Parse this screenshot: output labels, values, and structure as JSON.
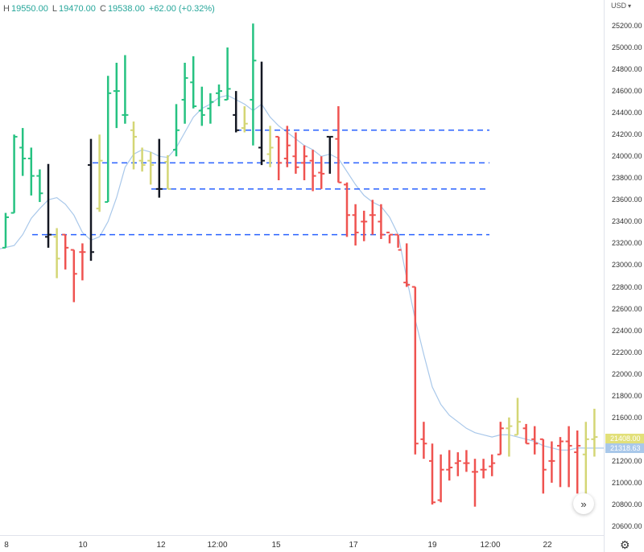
{
  "header": {
    "high_label": "H",
    "high": "19550.00",
    "low_label": "L",
    "low": "19470.00",
    "close_label": "C",
    "close": "19538.00",
    "change": "+62.00 (+0.32%)"
  },
  "price_scale": {
    "currency": "USD",
    "labels": [
      "25200.00",
      "25000.00",
      "24800.00",
      "24600.00",
      "24400.00",
      "24200.00",
      "24000.00",
      "23800.00",
      "23600.00",
      "23400.00",
      "23200.00",
      "23000.00",
      "22800.00",
      "22600.00",
      "22400.00",
      "22200.00",
      "22000.00",
      "21800.00",
      "21600.00",
      "21400.00",
      "21200.00",
      "21000.00",
      "20800.00",
      "20600.00"
    ],
    "last_price_tag": "21408.00",
    "ma_price_tag": "21318.63"
  },
  "time_scale": {
    "labels": [
      "8",
      "10",
      "12",
      "12:00",
      "15",
      "17",
      "19",
      "12:00",
      "22"
    ]
  },
  "colors": {
    "up": "#26c281",
    "down": "#ef5350",
    "neutral": "#d4d675",
    "black": "#131722",
    "ma": "#a9c8ea",
    "level": "#2962ff",
    "last_tag": "#e2e07a",
    "ma_tag": "#a9c8ea"
  },
  "icons": {
    "scroll": "double-chevron-right-icon",
    "settings": "gear-icon"
  },
  "chart_data": {
    "type": "ohlc",
    "ylim": [
      20600,
      25300
    ],
    "grid": false,
    "bars": [
      {
        "color": "up",
        "o": 23160,
        "h": 23480,
        "l": 23160,
        "c": 23440
      },
      {
        "color": "up",
        "o": 23480,
        "h": 24200,
        "l": 23480,
        "c": 24180
      },
      {
        "color": "up",
        "o": 24080,
        "h": 24260,
        "l": 23820,
        "c": 23980
      },
      {
        "color": "up",
        "o": 23980,
        "h": 24080,
        "l": 23640,
        "c": 23820
      },
      {
        "color": "up",
        "o": 23820,
        "h": 23880,
        "l": 23580,
        "c": 23660
      },
      {
        "color": "black",
        "o": 23260,
        "h": 23930,
        "l": 23160,
        "c": 23280
      },
      {
        "color": "neutral",
        "o": 23260,
        "h": 23340,
        "l": 22880,
        "c": 23060
      },
      {
        "color": "down",
        "o": 23280,
        "h": 23280,
        "l": 22960,
        "c": 23160
      },
      {
        "color": "down",
        "o": 23140,
        "h": 23140,
        "l": 22660,
        "c": 22920
      },
      {
        "color": "down",
        "o": 23120,
        "h": 23200,
        "l": 22860,
        "c": 23120
      },
      {
        "color": "black",
        "o": 23920,
        "h": 24160,
        "l": 23040,
        "c": 23120
      },
      {
        "color": "neutral",
        "o": 23520,
        "h": 24200,
        "l": 23490,
        "c": 23960
      },
      {
        "color": "up",
        "o": 23580,
        "h": 24740,
        "l": 23580,
        "c": 24580
      },
      {
        "color": "up",
        "o": 24600,
        "h": 24860,
        "l": 24260,
        "c": 24600
      },
      {
        "color": "up",
        "o": 24380,
        "h": 24930,
        "l": 24300,
        "c": 24380
      },
      {
        "color": "neutral",
        "o": 24240,
        "h": 24320,
        "l": 23880,
        "c": 24180
      },
      {
        "color": "neutral",
        "o": 23960,
        "h": 24080,
        "l": 23860,
        "c": 23920
      },
      {
        "color": "neutral",
        "o": 23960,
        "h": 24040,
        "l": 23740,
        "c": 23920
      },
      {
        "color": "black",
        "o": 23700,
        "h": 24160,
        "l": 23620,
        "c": 23700
      },
      {
        "color": "neutral",
        "o": 23950,
        "h": 24010,
        "l": 23700,
        "c": 23700
      },
      {
        "color": "up",
        "o": 24060,
        "h": 24480,
        "l": 24000,
        "c": 24240
      },
      {
        "color": "up",
        "o": 24520,
        "h": 24860,
        "l": 24300,
        "c": 24720
      },
      {
        "color": "up",
        "o": 24680,
        "h": 24920,
        "l": 24440,
        "c": 24460
      },
      {
        "color": "up",
        "o": 24420,
        "h": 24640,
        "l": 24280,
        "c": 24380
      },
      {
        "color": "up",
        "o": 24440,
        "h": 24580,
        "l": 24300,
        "c": 24500
      },
      {
        "color": "up",
        "o": 24580,
        "h": 24660,
        "l": 24460,
        "c": 24600
      },
      {
        "color": "up",
        "o": 24520,
        "h": 25000,
        "l": 24520,
        "c": 24620
      },
      {
        "color": "black",
        "o": 24380,
        "h": 24600,
        "l": 24220,
        "c": 24240
      },
      {
        "color": "neutral",
        "o": 24260,
        "h": 24460,
        "l": 24220,
        "c": 24300
      },
      {
        "color": "up",
        "o": 24520,
        "h": 25220,
        "l": 24100,
        "c": 24880
      },
      {
        "color": "black",
        "o": 24080,
        "h": 24870,
        "l": 23920,
        "c": 23960
      },
      {
        "color": "neutral",
        "o": 24020,
        "h": 24280,
        "l": 23900,
        "c": 24080
      },
      {
        "color": "down",
        "o": 24180,
        "h": 24180,
        "l": 23780,
        "c": 23940
      },
      {
        "color": "down",
        "o": 23980,
        "h": 24280,
        "l": 23900,
        "c": 24100
      },
      {
        "color": "down",
        "o": 24000,
        "h": 24220,
        "l": 23840,
        "c": 23900
      },
      {
        "color": "down",
        "o": 23940,
        "h": 24100,
        "l": 23780,
        "c": 24000
      },
      {
        "color": "down",
        "o": 23960,
        "h": 24060,
        "l": 23680,
        "c": 23820
      },
      {
        "color": "down",
        "o": 23850,
        "h": 24000,
        "l": 23700,
        "c": 23840
      },
      {
        "color": "black",
        "o": 24180,
        "h": 24180,
        "l": 23840,
        "c": 24180
      },
      {
        "color": "down",
        "o": 24160,
        "h": 24460,
        "l": 23760,
        "c": 23760
      },
      {
        "color": "down",
        "o": 23740,
        "h": 23760,
        "l": 23260,
        "c": 23460
      },
      {
        "color": "down",
        "o": 23460,
        "h": 23560,
        "l": 23180,
        "c": 23300
      },
      {
        "color": "down",
        "o": 23400,
        "h": 23500,
        "l": 23220,
        "c": 23400
      },
      {
        "color": "down",
        "o": 23460,
        "h": 23600,
        "l": 23280,
        "c": 23460
      },
      {
        "color": "down",
        "o": 23400,
        "h": 23560,
        "l": 23240,
        "c": 23280
      },
      {
        "color": "down",
        "o": 23300,
        "h": 23280,
        "l": 23200,
        "c": 23280
      },
      {
        "color": "down",
        "o": 23280,
        "h": 23280,
        "l": 23160,
        "c": 23140
      },
      {
        "color": "down",
        "o": 22840,
        "h": 23200,
        "l": 22800,
        "c": 22820
      },
      {
        "color": "down",
        "o": 22800,
        "h": 22800,
        "l": 21260,
        "c": 21360
      },
      {
        "color": "down",
        "o": 21400,
        "h": 21560,
        "l": 21220,
        "c": 21360
      },
      {
        "color": "down",
        "o": 21200,
        "h": 21360,
        "l": 20800,
        "c": 20820
      },
      {
        "color": "down",
        "o": 20840,
        "h": 21260,
        "l": 20820,
        "c": 21120
      },
      {
        "color": "down",
        "o": 21120,
        "h": 21300,
        "l": 21020,
        "c": 21140
      },
      {
        "color": "down",
        "o": 21180,
        "h": 21280,
        "l": 21060,
        "c": 21200
      },
      {
        "color": "down",
        "o": 21180,
        "h": 21300,
        "l": 21100,
        "c": 21180
      },
      {
        "color": "down",
        "o": 21100,
        "h": 21220,
        "l": 20780,
        "c": 21100
      },
      {
        "color": "down",
        "o": 21120,
        "h": 21220,
        "l": 21040,
        "c": 21120
      },
      {
        "color": "down",
        "o": 21150,
        "h": 21260,
        "l": 21060,
        "c": 21180
      },
      {
        "color": "down",
        "o": 21260,
        "h": 21560,
        "l": 21260,
        "c": 21500
      },
      {
        "color": "neutral",
        "o": 21500,
        "h": 21600,
        "l": 21240,
        "c": 21520
      },
      {
        "color": "neutral",
        "o": 21440,
        "h": 21780,
        "l": 21440,
        "c": 21560
      },
      {
        "color": "down",
        "o": 21500,
        "h": 21540,
        "l": 21360,
        "c": 21360
      },
      {
        "color": "down",
        "o": 21400,
        "h": 21520,
        "l": 21260,
        "c": 21360
      },
      {
        "color": "down",
        "o": 21400,
        "h": 21400,
        "l": 20900,
        "c": 21120
      },
      {
        "color": "down",
        "o": 21200,
        "h": 21380,
        "l": 21000,
        "c": 21200
      },
      {
        "color": "down",
        "o": 21340,
        "h": 21420,
        "l": 20960,
        "c": 21380
      },
      {
        "color": "down",
        "o": 21380,
        "h": 21520,
        "l": 20960,
        "c": 21340
      },
      {
        "color": "down",
        "o": 21280,
        "h": 21480,
        "l": 20900,
        "c": 21340
      },
      {
        "color": "neutral",
        "o": 21260,
        "h": 21560,
        "l": 20900,
        "c": 21400
      },
      {
        "color": "neutral",
        "o": 21400,
        "h": 21680,
        "l": 21240,
        "c": 21420
      }
    ],
    "moving_average": [
      23150,
      23180,
      23280,
      23430,
      23520,
      23600,
      23620,
      23560,
      23460,
      23300,
      23230,
      23260,
      23400,
      23620,
      23900,
      24020,
      24060,
      24040,
      24000,
      23990,
      24080,
      24220,
      24360,
      24440,
      24480,
      24540,
      24560,
      24520,
      24480,
      24420,
      24480,
      24360,
      24280,
      24220,
      24160,
      24100,
      24060,
      24000,
      24020,
      23980,
      23860,
      23740,
      23640,
      23580,
      23540,
      23440,
      23280,
      22880,
      22500,
      22180,
      21880,
      21720,
      21620,
      21560,
      21500,
      21460,
      21440,
      21420,
      21440,
      21440,
      21420,
      21400,
      21380,
      21340,
      21320,
      21300,
      21300,
      21320,
      21318
    ],
    "levels": [
      24240,
      23940,
      23700,
      23280
    ]
  }
}
